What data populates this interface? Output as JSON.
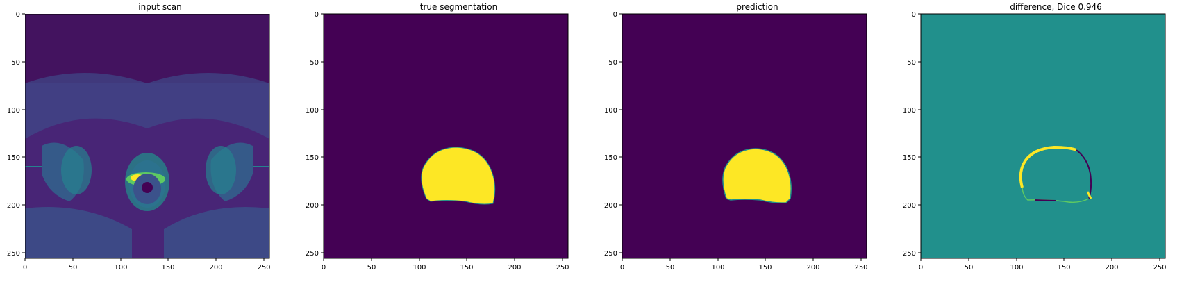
{
  "figure": {
    "panels": [
      {
        "title": "input scan"
      },
      {
        "title": "true segmentation"
      },
      {
        "title": "prediction"
      },
      {
        "title": "difference, Dice 0.946"
      }
    ],
    "axis": {
      "xticks": [
        "0",
        "50",
        "100",
        "150",
        "200",
        "250"
      ],
      "yticks": [
        "0",
        "50",
        "100",
        "150",
        "200",
        "250"
      ],
      "range": [
        0,
        256
      ]
    },
    "colors": {
      "viridis_dark": "#440154",
      "viridis_mid": "#21908c",
      "viridis_bright": "#fde725",
      "viridis_teal": "#2a788e",
      "viridis_green": "#5ec962"
    }
  }
}
